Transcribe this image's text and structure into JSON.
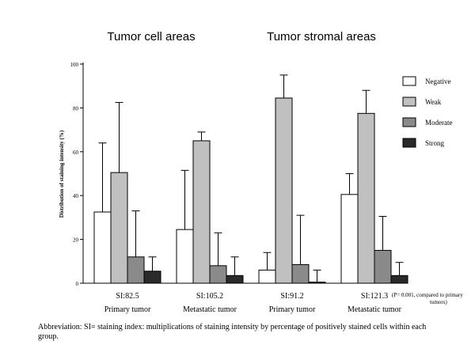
{
  "panel_titles": [
    "Tumor cell areas",
    "Tumor stromal areas"
  ],
  "footnote": "Abbreviation: SI= staining index: multiplications of staining intensity by percentage of positively stained cells within each group.",
  "chart_data": {
    "type": "bar",
    "ylabel": "Distribution of staining intensity (%)",
    "ylim": [
      0,
      100
    ],
    "yticks": [
      0,
      20,
      40,
      60,
      80,
      100
    ],
    "grid": false,
    "legend_position": "right",
    "groups": [
      {
        "si_label": "SI:82.5",
        "name": "Primary tumor"
      },
      {
        "si_label": "SI:105.2",
        "name": "Metastatic tumor"
      },
      {
        "si_label": "SI:91.2",
        "name": "Primary tumor"
      },
      {
        "si_label": "SI:121.3",
        "name": "Metastatic tumor",
        "note": "(P= 0.001, compared to primary tumors)"
      }
    ],
    "series": [
      {
        "name": "Negative",
        "color": "#ffffff",
        "values": [
          32.5,
          24.5,
          6,
          40.5
        ],
        "errors": [
          31.5,
          27,
          8,
          9.5
        ]
      },
      {
        "name": "Weak",
        "color": "#c0c0c0",
        "values": [
          50.5,
          65,
          84.5,
          77.5
        ],
        "errors": [
          32,
          4,
          10.5,
          10.5
        ]
      },
      {
        "name": "Moderate",
        "color": "#8a8a8a",
        "values": [
          12,
          8,
          8.5,
          15
        ],
        "errors": [
          21,
          15,
          22.5,
          15.5
        ]
      },
      {
        "name": "Strong",
        "color": "#2a2a2a",
        "values": [
          5.5,
          3.5,
          0.5,
          3.5
        ],
        "errors": [
          6.5,
          8.5,
          5.5,
          6
        ]
      }
    ]
  }
}
